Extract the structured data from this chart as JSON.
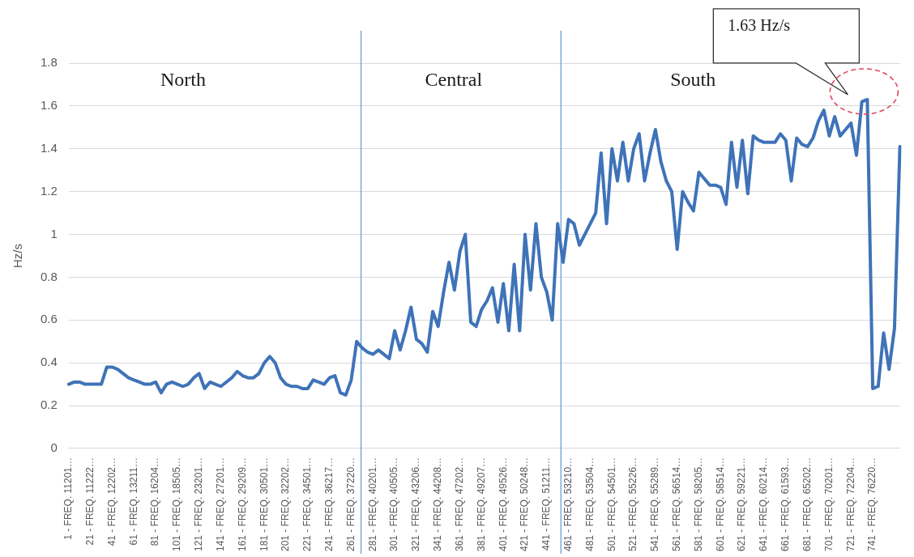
{
  "chart_data": {
    "type": "line",
    "ylabel": "Hz/s",
    "color": "#3f73b8",
    "categories": [
      "1 - FREQ. 11201…",
      null,
      null,
      null,
      "21 - FREQ. 11222…",
      null,
      null,
      null,
      "41 - FREQ. 12202…",
      null,
      null,
      null,
      "61 - FREQ. 13211…",
      null,
      null,
      null,
      "81 - FREQ. 16204…",
      null,
      null,
      null,
      "101 - FREQ. 18505…",
      null,
      null,
      null,
      "121 - FREQ. 23201…",
      null,
      null,
      null,
      "141 - FREQ. 27201…",
      null,
      null,
      null,
      "161 - FREQ. 29209…",
      null,
      null,
      null,
      "181 - FREQ. 30501…",
      null,
      null,
      null,
      "201 - FREQ. 32202…",
      null,
      null,
      null,
      "221 - FREQ. 34501…",
      null,
      null,
      null,
      "241 - FREQ. 36217…",
      null,
      null,
      null,
      "261 - FREQ. 37220…",
      null,
      null,
      null,
      "281 - FREQ. 40201…",
      null,
      null,
      null,
      "301 - FREQ. 40505…",
      null,
      null,
      null,
      "321 - FREQ. 43206…",
      null,
      null,
      null,
      "341 - FREQ. 44208…",
      null,
      null,
      null,
      "361 - FREQ. 47202…",
      null,
      null,
      null,
      "381 - FREQ. 49207…",
      null,
      null,
      null,
      "401 - FREQ. 49526…",
      null,
      null,
      null,
      "421 - FREQ. 50248…",
      null,
      null,
      null,
      "441 - FREQ. 51211…",
      null,
      null,
      null,
      "461 - FREQ. 53210…",
      null,
      null,
      null,
      "481 - FREQ. 53504…",
      null,
      null,
      null,
      "501 - FREQ. 54501…",
      null,
      null,
      null,
      "521 - FREQ. 55226…",
      null,
      null,
      null,
      "541 - FREQ. 55289…",
      null,
      null,
      null,
      "561 - FREQ. 56514…",
      null,
      null,
      null,
      "581 - FREQ. 58205…",
      null,
      null,
      null,
      "601 - FREQ. 58514…",
      null,
      null,
      null,
      "621 - FREQ. 59221…",
      null,
      null,
      null,
      "641 - FREQ. 60214…",
      null,
      null,
      null,
      "661 - FREQ. 61593…",
      null,
      null,
      null,
      "681 - FREQ. 65202…",
      null,
      null,
      null,
      "701 - FREQ. 70201…",
      null,
      null,
      null,
      "721 - FREQ. 72204…",
      null,
      null,
      null,
      "741 - FREQ. 76220…",
      null,
      null,
      null,
      null,
      null
    ],
    "values": [
      0.3,
      0.31,
      0.31,
      0.3,
      0.3,
      0.3,
      0.3,
      0.38,
      0.38,
      0.37,
      0.35,
      0.33,
      0.32,
      0.31,
      0.3,
      0.3,
      0.31,
      0.26,
      0.3,
      0.31,
      0.3,
      0.29,
      0.3,
      0.33,
      0.35,
      0.28,
      0.31,
      0.3,
      0.29,
      0.31,
      0.33,
      0.36,
      0.34,
      0.33,
      0.33,
      0.35,
      0.4,
      0.43,
      0.4,
      0.33,
      0.3,
      0.29,
      0.29,
      0.28,
      0.28,
      0.32,
      0.31,
      0.3,
      0.33,
      0.34,
      0.26,
      0.25,
      0.32,
      0.5,
      0.47,
      0.45,
      0.44,
      0.46,
      0.44,
      0.42,
      0.55,
      0.46,
      0.55,
      0.66,
      0.51,
      0.49,
      0.45,
      0.64,
      0.57,
      0.73,
      0.87,
      0.74,
      0.92,
      1.0,
      0.59,
      0.57,
      0.65,
      0.69,
      0.75,
      0.59,
      0.77,
      0.55,
      0.86,
      0.55,
      1.0,
      0.74,
      1.05,
      0.8,
      0.73,
      0.6,
      1.05,
      0.87,
      1.07,
      1.05,
      0.95,
      1.0,
      1.05,
      1.1,
      1.38,
      1.05,
      1.4,
      1.25,
      1.43,
      1.25,
      1.4,
      1.47,
      1.25,
      1.38,
      1.49,
      1.34,
      1.25,
      1.2,
      0.93,
      1.2,
      1.15,
      1.11,
      1.29,
      1.26,
      1.23,
      1.23,
      1.22,
      1.14,
      1.43,
      1.22,
      1.44,
      1.19,
      1.46,
      1.44,
      1.43,
      1.43,
      1.43,
      1.47,
      1.44,
      1.25,
      1.45,
      1.42,
      1.41,
      1.45,
      1.53,
      1.58,
      1.46,
      1.55,
      1.46,
      1.49,
      1.52,
      1.37,
      1.62,
      1.63,
      0.28,
      0.29,
      0.54,
      0.37,
      0.56,
      1.41
    ],
    "ylim": [
      0,
      1.8
    ],
    "yticks": [
      0,
      0.2,
      0.4,
      0.6,
      0.8,
      1,
      1.2,
      1.4,
      1.6,
      1.8
    ],
    "grid": "y",
    "annotations": [
      "North",
      "Central",
      "South",
      "1.63 Hz/s"
    ]
  }
}
